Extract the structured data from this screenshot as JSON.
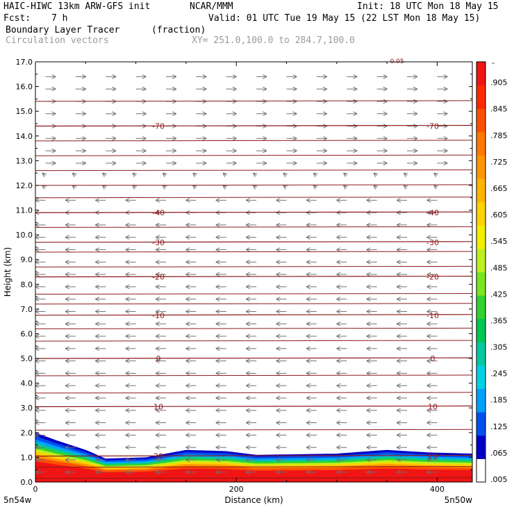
{
  "header": {
    "model_title": "HAIC-HIWC 13km ARW-GFS init",
    "org": "NCAR/MMM",
    "init": "Init: 18 UTC Mon 18 May 15",
    "fcst_label": "Fcst:",
    "fcst_value": "7 h",
    "valid": "Valid: 01 UTC Tue 19 May 15 (22 LST Mon 18 May 15)",
    "field_name": "Boundary Layer Tracer",
    "field_units": "(fraction)",
    "vector_label": "Circulation vectors",
    "xy_label": "XY= 251.0,100.0 to 284.7,100.0"
  },
  "chart_data": {
    "type": "heatmap",
    "xlabel": "Distance (km)",
    "ylabel": "Height (km)",
    "xlim": [
      0,
      435
    ],
    "ylim": [
      0,
      17
    ],
    "x_ticks": [
      0,
      200,
      400
    ],
    "x_tick_labels": [
      "0",
      "200",
      "400"
    ],
    "y_ticks": [
      0,
      1,
      2,
      3,
      4,
      5,
      6,
      7,
      8,
      9,
      10,
      11,
      12,
      13,
      14,
      15,
      16,
      17
    ],
    "y_tick_labels": [
      "0.0",
      "1.0",
      "2.0",
      "3.0",
      "4.0",
      "5.0",
      "6.0",
      "7.0",
      "8.0",
      "9.0",
      "10.0",
      "11.0",
      "12.0",
      "13.0",
      "14.0",
      "15.0",
      "16.0",
      "17.0"
    ],
    "x_end_labels": [
      "5n54w",
      "5n50w"
    ],
    "colorbar": {
      "colors": [
        "#ffffff",
        "#0000c8",
        "#0050f0",
        "#00a0ff",
        "#00d2e6",
        "#00c8a0",
        "#00c850",
        "#32d232",
        "#78e61e",
        "#bef01e",
        "#f0f000",
        "#ffd200",
        "#ffb400",
        "#ff9600",
        "#ff7800",
        "#ff5000",
        "#ff2800",
        "#f01414"
      ],
      "labels": [
        ".005",
        ".065",
        ".125",
        ".185",
        ".245",
        ".305",
        ".365",
        ".425",
        ".485",
        ".545",
        ".605",
        ".665",
        ".725",
        ".785",
        ".845",
        ".905"
      ],
      "top_label": "-"
    },
    "isotherms": [
      {
        "value": 20,
        "height_km": 1.05,
        "labels": [
          "20",
          "20"
        ]
      },
      {
        "value": 10,
        "height_km": 3.05,
        "labels": [
          "10",
          "10"
        ]
      },
      {
        "value": 0,
        "height_km": 5.0,
        "labels": [
          "0",
          "0"
        ]
      },
      {
        "value": -10,
        "height_km": 6.75,
        "labels": [
          "-10",
          "-10"
        ]
      },
      {
        "value": -20,
        "height_km": 8.3,
        "labels": [
          "-20",
          "-20"
        ]
      },
      {
        "value": -30,
        "height_km": 9.7,
        "labels": [
          "-30",
          "-30"
        ]
      },
      {
        "value": -40,
        "height_km": 10.9,
        "labels": [
          "-40",
          "-40"
        ]
      },
      {
        "value": -70,
        "height_km": 14.4,
        "labels": [
          "-70",
          "-70"
        ]
      }
    ],
    "extra_contour_heights_km": [
      0.15,
      0.6,
      2.1,
      3.6,
      4.3,
      5.7,
      6.2,
      7.2,
      7.6,
      8.7,
      9.3,
      10.3,
      11.5,
      12.0,
      12.6,
      13.2,
      13.8,
      15.4
    ],
    "top_partial_label": "-0.05",
    "tracer_layer": [
      {
        "x": 0,
        "top_km": 2.0
      },
      {
        "x": 20,
        "top_km": 1.7
      },
      {
        "x": 50,
        "top_km": 1.3
      },
      {
        "x": 70,
        "top_km": 0.95
      },
      {
        "x": 110,
        "top_km": 1.0
      },
      {
        "x": 150,
        "top_km": 1.3
      },
      {
        "x": 190,
        "top_km": 1.25
      },
      {
        "x": 220,
        "top_km": 1.1
      },
      {
        "x": 300,
        "top_km": 1.15
      },
      {
        "x": 350,
        "top_km": 1.3
      },
      {
        "x": 390,
        "top_km": 1.2
      },
      {
        "x": 435,
        "top_km": 1.15
      }
    ]
  }
}
